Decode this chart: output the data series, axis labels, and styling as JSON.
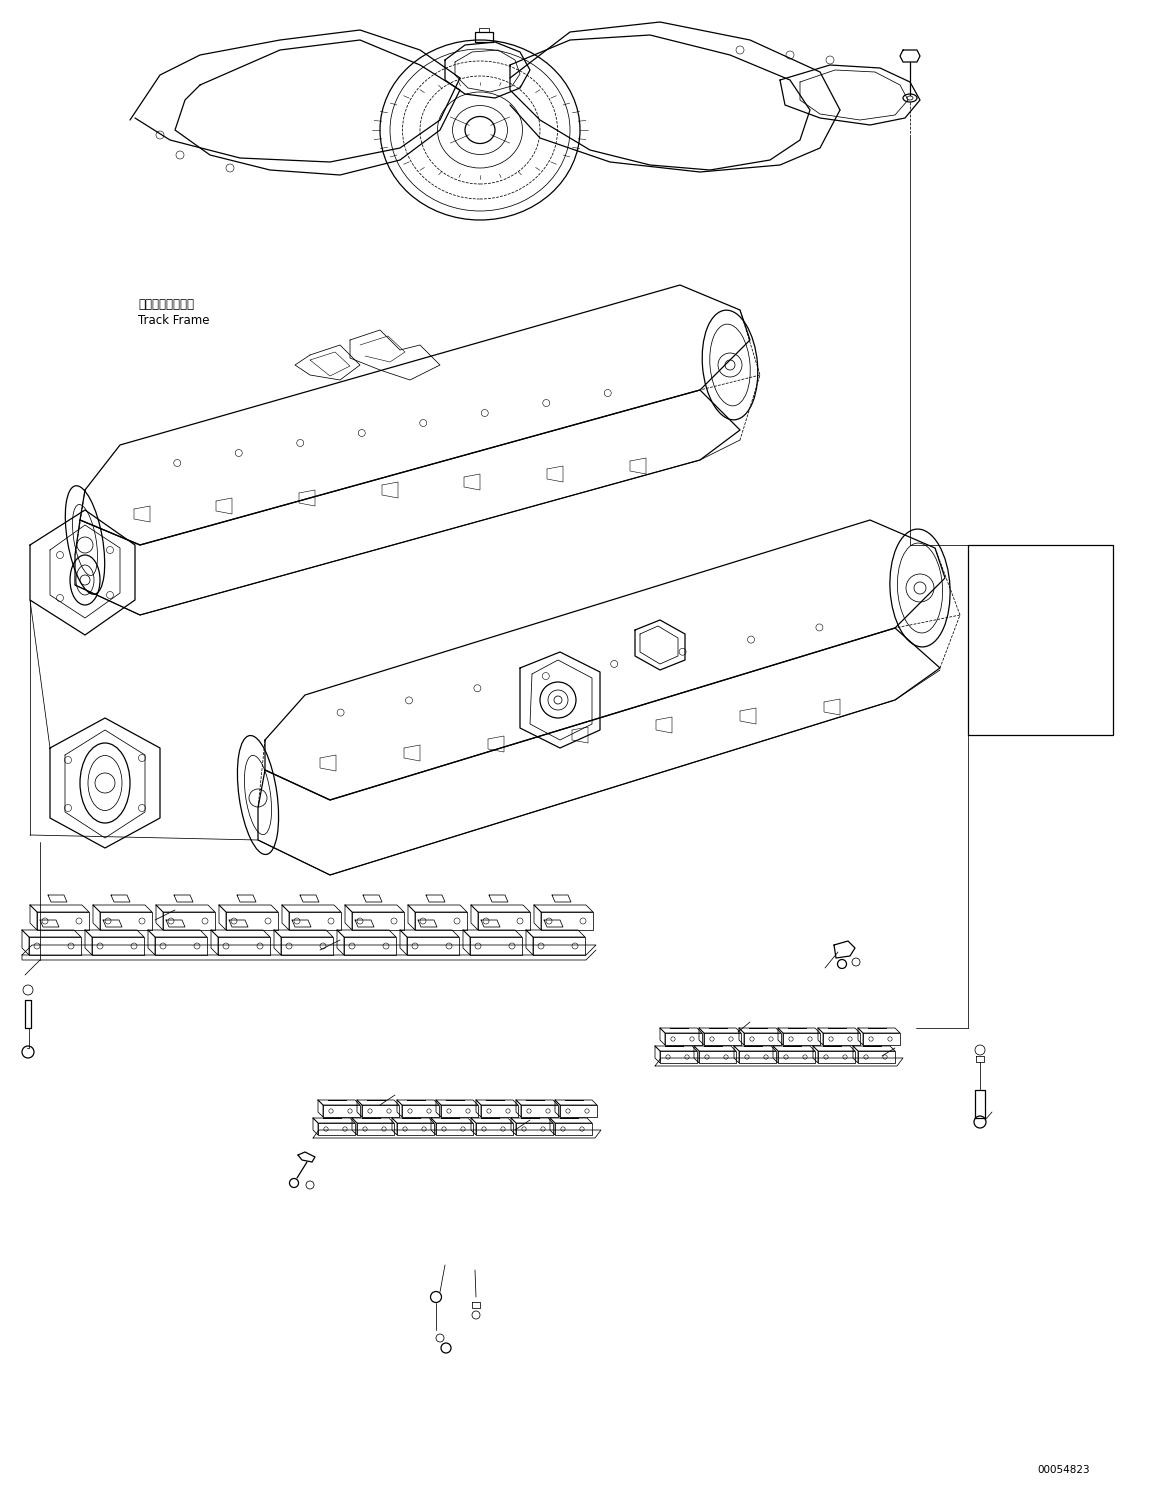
{
  "background_color": "#ffffff",
  "line_color": "#000000",
  "fig_width": 11.49,
  "fig_height": 14.91,
  "dpi": 100,
  "label_track_frame_jp": "トラックフレーム",
  "label_track_frame_en": "Track Frame",
  "watermark": "00054823",
  "label_font_size": 8.5,
  "watermark_font_size": 7.5
}
